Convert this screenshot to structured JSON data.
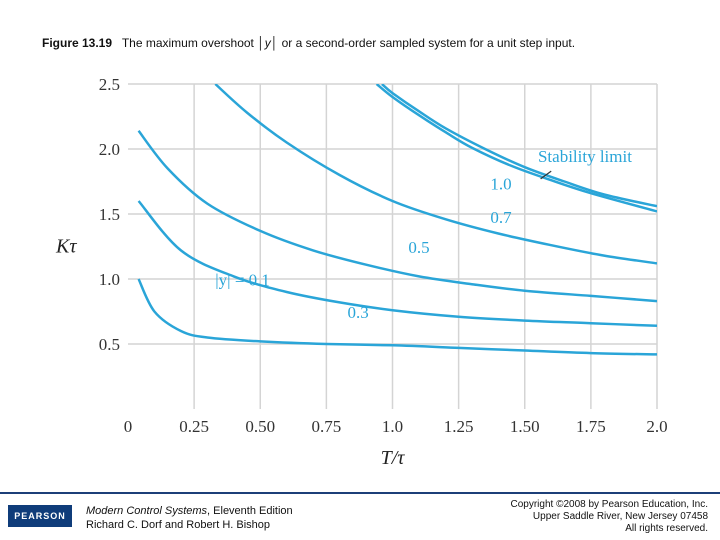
{
  "caption": {
    "figure": "Figure 13.19",
    "text_before": "The maximum overshoot",
    "variable": "y",
    "text_after": "or a second-order sampled system for a unit step input."
  },
  "footer": {
    "logo": "PEARSON",
    "book_title": "Modern Control Systems",
    "book_edition": ", Eleventh Edition",
    "authors": "Richard C. Dorf and Robert H. Bishop",
    "copyright_1": "Copyright ©2008 by Pearson Education, Inc.",
    "copyright_2": "Upper Saddle River, New Jersey 07458",
    "copyright_3": "All rights reserved."
  },
  "colors": {
    "curve": "#2aa5d8",
    "grid": "#d4d4d4"
  },
  "chart_data": {
    "type": "line",
    "xlabel": "T/τ",
    "ylabel": "Kτ",
    "xlim": [
      0,
      2.0
    ],
    "ylim": [
      0,
      2.5
    ],
    "grid": true,
    "x_ticks": [
      "0",
      "0.25",
      "0.50",
      "0.75",
      "1.0",
      "1.25",
      "1.50",
      "1.75",
      "2.0"
    ],
    "y_ticks": [
      "0",
      "0.5",
      "1.0",
      "1.5",
      "2.0",
      "2.5"
    ],
    "series": [
      {
        "name": "|y| = 0.1",
        "x": [
          0.04,
          0.1,
          0.2,
          0.3,
          0.5,
          0.75,
          1.0,
          1.25,
          1.5,
          1.75,
          2.0
        ],
        "y": [
          1.0,
          0.75,
          0.6,
          0.55,
          0.52,
          0.5,
          0.49,
          0.47,
          0.45,
          0.43,
          0.42
        ]
      },
      {
        "name": "0.3",
        "x": [
          0.04,
          0.2,
          0.4,
          0.6,
          0.8,
          1.0,
          1.25,
          1.5,
          1.75,
          2.0
        ],
        "y": [
          1.6,
          1.22,
          1.02,
          0.9,
          0.82,
          0.76,
          0.71,
          0.68,
          0.66,
          0.64
        ]
      },
      {
        "name": "0.5",
        "x": [
          0.04,
          0.15,
          0.3,
          0.5,
          0.7,
          0.9,
          1.1,
          1.3,
          1.5,
          1.75,
          2.0
        ],
        "y": [
          2.14,
          1.85,
          1.58,
          1.37,
          1.22,
          1.11,
          1.02,
          0.96,
          0.91,
          0.87,
          0.83
        ]
      },
      {
        "name": "0.7",
        "x": [
          0.33,
          0.45,
          0.6,
          0.8,
          1.0,
          1.2,
          1.4,
          1.6,
          1.8,
          2.0
        ],
        "y": [
          2.5,
          2.28,
          2.05,
          1.8,
          1.6,
          1.46,
          1.35,
          1.26,
          1.18,
          1.12
        ]
      },
      {
        "name": "1.0",
        "x": [
          0.94,
          1.0,
          1.1,
          1.2,
          1.3,
          1.45,
          1.6,
          1.75,
          2.0
        ],
        "y": [
          2.5,
          2.4,
          2.26,
          2.13,
          2.01,
          1.87,
          1.76,
          1.66,
          1.52
        ]
      },
      {
        "name": "Stability limit",
        "x": [
          0.96,
          1.0,
          1.1,
          1.2,
          1.35,
          1.5,
          1.65,
          1.8,
          2.0
        ],
        "y": [
          2.5,
          2.43,
          2.29,
          2.16,
          2.0,
          1.86,
          1.75,
          1.65,
          1.56
        ]
      }
    ],
    "annotations": [
      "|y| = 0.1",
      "0.3",
      "0.5",
      "0.7",
      "1.0",
      "Stability limit"
    ]
  }
}
